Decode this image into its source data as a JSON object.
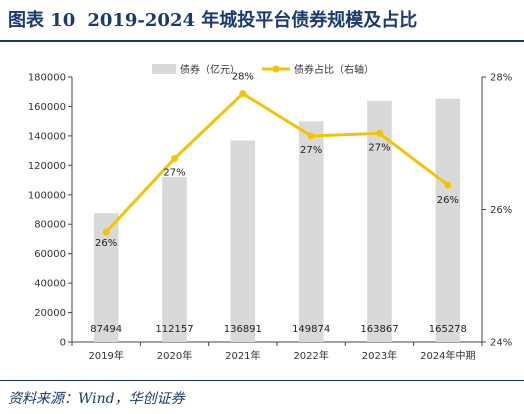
{
  "header": {
    "figure_label": "图表 10",
    "title": "2019-2024 年城投平台债券规模及占比"
  },
  "footer": {
    "source": "资料来源：Wind，华创证券"
  },
  "chart_data": {
    "type": "bar",
    "categories": [
      "2019年",
      "2020年",
      "2021年",
      "2022年",
      "2023年",
      "2024年中期"
    ],
    "series": [
      {
        "name": "债券（亿元）",
        "type": "bar",
        "axis": "left",
        "values": [
          87494,
          112157,
          136891,
          149874,
          163867,
          165278
        ],
        "value_labels": [
          "87494",
          "112157",
          "136891",
          "149874",
          "163867",
          "165278"
        ],
        "color": "#d9d9d9"
      },
      {
        "name": "债券占比（右轴）",
        "type": "line",
        "axis": "right",
        "values": [
          25.66,
          26.77,
          27.75,
          27.11,
          27.15,
          26.37
        ],
        "value_labels": [
          "26%",
          "27%",
          "28%",
          "27%",
          "27%",
          "26%"
        ],
        "color": "#f5c400"
      }
    ],
    "y_left": {
      "ylim": [
        0,
        180000
      ],
      "ticks": [
        0,
        20000,
        40000,
        60000,
        80000,
        100000,
        120000,
        140000,
        160000,
        180000
      ],
      "tick_labels": [
        "0",
        "20000",
        "40000",
        "60000",
        "80000",
        "100000",
        "120000",
        "140000",
        "160000",
        "180000"
      ]
    },
    "y_right": {
      "ylim": [
        24,
        28
      ],
      "ticks": [
        24,
        26,
        28
      ],
      "tick_labels": [
        "24%",
        "26%",
        "28%"
      ]
    },
    "grid": false,
    "legend_position": "top-center"
  }
}
